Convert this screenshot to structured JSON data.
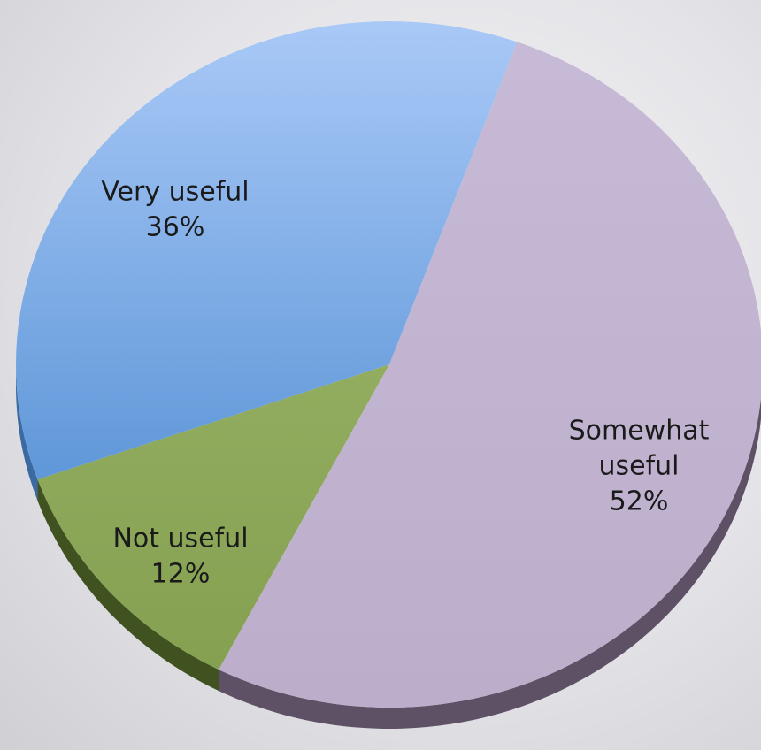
{
  "chart_data": {
    "type": "pie",
    "title": "",
    "start_angle_deg": 20,
    "slices": [
      {
        "label_lines": [
          "Somewhat",
          "useful"
        ],
        "percent_label": "52%",
        "value": 52,
        "color": "#bfb1cd",
        "side_color": "#5e5166"
      },
      {
        "label_lines": [
          "Not useful"
        ],
        "percent_label": "12%",
        "value": 12,
        "color": "#8ea75b",
        "side_color": "#3f5220"
      },
      {
        "label_lines": [
          "Very useful"
        ],
        "percent_label": "36%",
        "value": 36,
        "color": "#6fa2da",
        "side_color": "#3b6aa3"
      }
    ]
  }
}
